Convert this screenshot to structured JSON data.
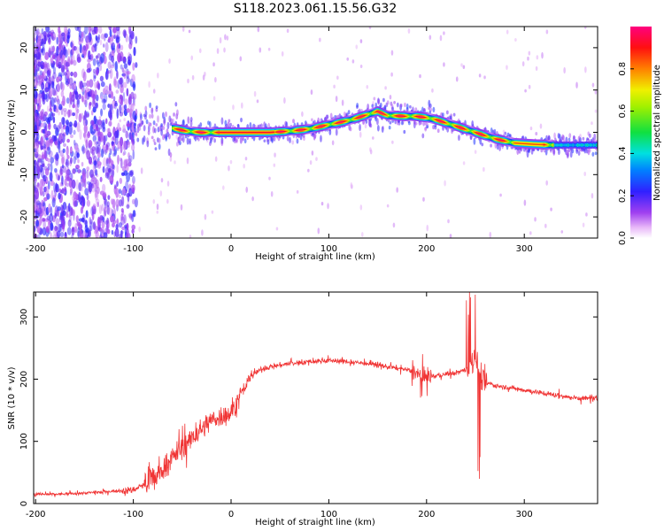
{
  "figure": {
    "title": "S118.2023.061.15.56.G32"
  },
  "chart_data": [
    {
      "type": "heatmap",
      "panel": "spectrogram",
      "xlabel": "Height of straight line (km)",
      "ylabel": "Frequency (Hz)",
      "xlim": [
        -202,
        375
      ],
      "ylim": [
        -25,
        25
      ],
      "xticks": [
        -200,
        -100,
        0,
        100,
        200,
        300
      ],
      "yticks": [
        -20,
        -10,
        0,
        10,
        20
      ],
      "grid": false,
      "ridge_track": {
        "x": [
          -60,
          -45,
          -30,
          -10,
          0,
          20,
          40,
          60,
          80,
          100,
          120,
          140,
          150,
          160,
          180,
          190,
          200,
          210,
          230,
          250,
          270,
          290,
          310,
          330,
          350,
          375
        ],
        "y": [
          1,
          0.3,
          0,
          0,
          0,
          0,
          0,
          0.3,
          0.8,
          1.8,
          2.8,
          4.2,
          5,
          4,
          3.8,
          3.8,
          3.5,
          3,
          1.5,
          0,
          -1.5,
          -2.5,
          -2.8,
          -3,
          -3,
          -3
        ]
      },
      "colorbar": {
        "label": "Normalized spectral amplitude",
        "range": [
          0.0,
          1.0
        ],
        "ticks": [
          0.0,
          0.2,
          0.4,
          0.6,
          0.8
        ],
        "tick_labels": [
          "0.0",
          "0.2",
          "0.4",
          "0.6",
          "0.8"
        ]
      }
    },
    {
      "type": "line",
      "panel": "snr",
      "color": "#f03434",
      "xlabel": "Height of straight line (km)",
      "ylabel": "SNR (10 * v/v)",
      "xlim": [
        -202,
        375
      ],
      "ylim": [
        0,
        340
      ],
      "xticks": [
        -200,
        -100,
        0,
        100,
        200,
        300
      ],
      "yticks": [
        0,
        100,
        200,
        300
      ],
      "grid": false,
      "series": [
        {
          "x": [
            -202,
            -180,
            -160,
            -140,
            -120,
            -100,
            -90,
            -80,
            -70,
            -60,
            -50,
            -40,
            -30,
            -20,
            -10,
            0,
            10,
            20,
            30,
            40,
            60,
            80,
            100,
            120,
            140,
            160,
            180,
            190,
            195,
            200,
            210,
            220,
            230,
            240,
            245,
            250,
            255,
            260,
            270,
            290,
            310,
            330,
            350,
            375
          ],
          "y": [
            15,
            15,
            16,
            18,
            20,
            22,
            30,
            40,
            55,
            75,
            90,
            105,
            120,
            135,
            140,
            145,
            175,
            205,
            215,
            220,
            225,
            228,
            230,
            228,
            225,
            220,
            215,
            210,
            200,
            205,
            205,
            208,
            210,
            215,
            225,
            240,
            200,
            195,
            190,
            185,
            180,
            175,
            170,
            168
          ]
        }
      ]
    }
  ]
}
